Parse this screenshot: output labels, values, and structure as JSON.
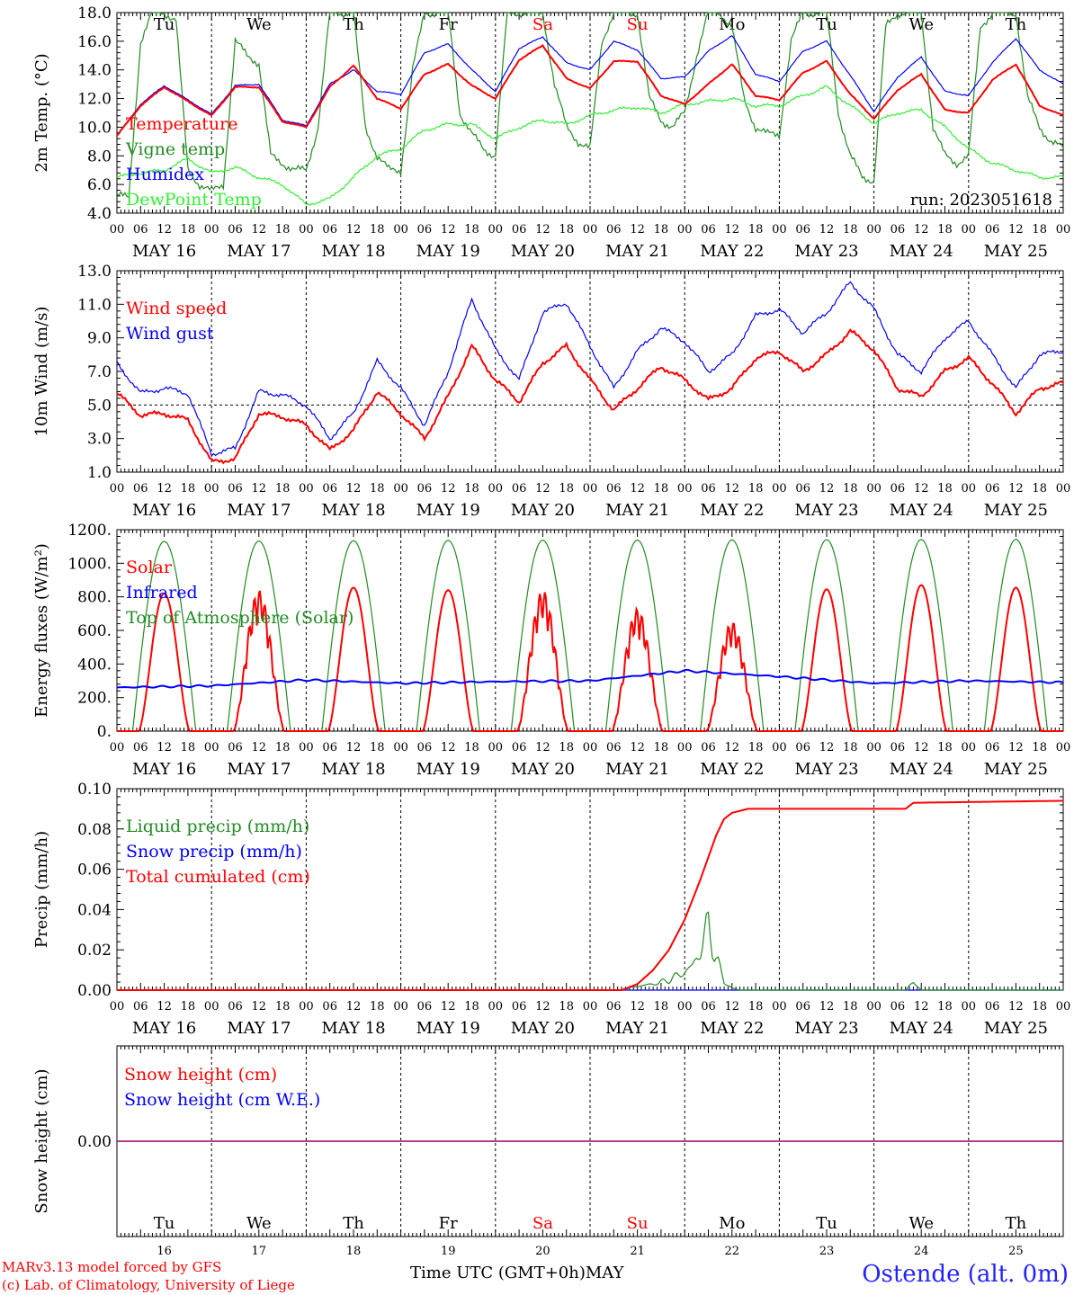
{
  "time_axis": {
    "hour_ticks": [
      "00",
      "06",
      "12",
      "18"
    ],
    "final_tick": "00",
    "dates": [
      "MAY 16",
      "MAY 17",
      "MAY 18",
      "MAY 19",
      "MAY 20",
      "MAY 21",
      "MAY 22",
      "MAY 23",
      "MAY 24",
      "MAY 25"
    ],
    "weekdays": [
      "Tu",
      "We",
      "Th",
      "Fr",
      "Sa",
      "Su",
      "Mo",
      "Tu",
      "We",
      "Th"
    ],
    "day_numbers": [
      "16",
      "17",
      "18",
      "19",
      "20",
      "21",
      "22",
      "23",
      "24",
      "25"
    ],
    "weekday_colors": [
      "#000000",
      "#000000",
      "#000000",
      "#000000",
      "#ff0000",
      "#ff0000",
      "#000000",
      "#000000",
      "#000000",
      "#000000"
    ],
    "xlabel": "Time UTC (GMT+0h)",
    "month_label": "MAY"
  },
  "run_label": "run: 2023051618",
  "footer": {
    "model": "MARv3.13 model forced by GFS",
    "lab": "(c) Lab. of Climatology, University of Liege",
    "station": "Ostende (alt. 0m)"
  },
  "chart_data": [
    {
      "type": "line",
      "ylabel": "2m Temp. (°C)",
      "ylim": [
        4,
        18
      ],
      "ytick_labels": [
        "4.0",
        "6.0",
        "8.0",
        "10.0",
        "12.0",
        "14.0",
        "16.0",
        "18.0"
      ],
      "x_unit": "hours since May 16 00 UTC",
      "series": [
        {
          "name": "Temperature",
          "color": "#ff0000",
          "x": [
            0,
            6,
            12,
            18,
            24,
            30,
            36,
            42,
            48,
            54,
            60,
            66,
            72,
            78,
            84,
            90,
            96,
            102,
            108,
            114,
            120,
            126,
            132,
            138,
            144,
            150,
            156,
            162,
            168,
            174,
            180,
            186,
            192,
            198,
            204,
            210,
            216,
            222,
            228,
            234,
            240
          ],
          "values": [
            9.4,
            11.5,
            12.8,
            11.8,
            10.8,
            12.8,
            12.8,
            10.4,
            10.0,
            12.8,
            14.3,
            12.0,
            11.3,
            13.7,
            14.4,
            12.9,
            12.0,
            14.7,
            15.7,
            13.4,
            12.7,
            14.6,
            14.6,
            12.2,
            11.6,
            13.0,
            14.4,
            12.2,
            11.9,
            13.8,
            14.6,
            12.3,
            10.6,
            12.6,
            13.7,
            11.2,
            11.0,
            13.3,
            14.4,
            11.5,
            10.8
          ]
        },
        {
          "name": "Vigne temp",
          "color": "#228b22",
          "x": [
            0,
            3,
            6,
            9,
            12,
            15,
            18,
            21,
            24,
            27,
            30,
            33,
            36,
            39,
            42,
            45,
            48,
            51,
            54,
            57,
            60,
            63,
            66,
            69,
            72,
            75,
            78,
            81,
            84,
            87,
            90,
            93,
            96,
            99,
            102,
            105,
            108,
            111,
            114,
            117,
            120,
            123,
            126,
            129,
            132,
            135,
            138,
            141,
            144,
            147,
            150,
            153,
            156,
            159,
            162,
            165,
            168,
            171,
            174,
            177,
            180,
            183,
            186,
            189,
            192,
            195,
            198,
            201,
            204,
            207,
            210,
            213,
            216,
            219,
            222,
            225,
            228,
            231,
            234,
            237,
            240
          ],
          "values": [
            5.3,
            5.0,
            16.0,
            18.0,
            18.0,
            17.5,
            7.0,
            6.0,
            5.5,
            6.0,
            16.0,
            15.0,
            14.5,
            8.0,
            7.5,
            7.0,
            7.0,
            10.0,
            18.0,
            18.0,
            18.0,
            10.0,
            8.0,
            7.0,
            7.0,
            14.0,
            18.0,
            18.0,
            18.0,
            11.0,
            9.5,
            8.5,
            8.0,
            18.0,
            18.0,
            18.0,
            18.0,
            13.0,
            10.0,
            9.0,
            8.5,
            16.0,
            18.0,
            18.0,
            18.0,
            12.0,
            10.5,
            10.0,
            11.0,
            15.0,
            18.0,
            18.0,
            17.0,
            12.0,
            10.0,
            9.5,
            9.5,
            16.0,
            18.0,
            18.0,
            18.0,
            11.0,
            8.0,
            6.5,
            6.3,
            17.0,
            18.0,
            18.0,
            18.0,
            10.0,
            8.0,
            7.5,
            8.0,
            17.0,
            18.0,
            18.0,
            18.0,
            12.0,
            10.0,
            9.0,
            8.5
          ]
        },
        {
          "name": "Humidex",
          "color": "#0000ff",
          "x": [
            0,
            6,
            12,
            18,
            24,
            30,
            36,
            42,
            48,
            54,
            60,
            66,
            72,
            78,
            84,
            90,
            96,
            102,
            108,
            114,
            120,
            126,
            132,
            138,
            144,
            150,
            156,
            162,
            168,
            174,
            180,
            186,
            192,
            198,
            204,
            210,
            216,
            222,
            228,
            234,
            240
          ],
          "values": [
            9.4,
            11.6,
            12.9,
            11.9,
            10.9,
            12.9,
            13.0,
            10.5,
            10.1,
            13.0,
            14.0,
            12.5,
            12.3,
            15.2,
            15.8,
            14.0,
            12.5,
            15.5,
            16.3,
            14.5,
            14.0,
            16.0,
            15.4,
            13.4,
            13.5,
            15.3,
            16.4,
            13.7,
            13.2,
            15.3,
            16.0,
            13.6,
            11.1,
            13.5,
            14.9,
            12.5,
            12.2,
            14.5,
            16.2,
            14.0,
            13.0
          ]
        },
        {
          "name": "DewPoint Temp",
          "color": "#33ee33",
          "x": [
            0,
            6,
            12,
            18,
            24,
            30,
            36,
            42,
            48,
            54,
            60,
            66,
            72,
            78,
            84,
            90,
            96,
            102,
            108,
            114,
            120,
            126,
            132,
            138,
            144,
            150,
            156,
            162,
            168,
            174,
            180,
            186,
            192,
            198,
            204,
            210,
            216,
            222,
            228,
            234,
            240
          ],
          "values": [
            6.5,
            6.8,
            7.0,
            7.8,
            6.8,
            7.2,
            6.5,
            6.0,
            4.6,
            5.0,
            6.5,
            8.0,
            8.5,
            9.8,
            10.2,
            10.2,
            9.2,
            10.0,
            10.5,
            10.2,
            10.8,
            11.2,
            11.4,
            11.0,
            11.6,
            11.8,
            12.0,
            11.5,
            11.5,
            12.2,
            12.8,
            11.5,
            10.3,
            11.0,
            11.2,
            10.0,
            8.5,
            7.5,
            7.0,
            6.5,
            6.5
          ]
        }
      ]
    },
    {
      "type": "line",
      "ylabel": "10m Wind (m/s)",
      "ylim": [
        1,
        13
      ],
      "ytick_labels": [
        "1.0",
        "3.0",
        "5.0",
        "7.0",
        "9.0",
        "11.0",
        "13.0"
      ],
      "reference_line": 5,
      "series": [
        {
          "name": "Wind speed",
          "color": "#ff0000",
          "x": [
            0,
            6,
            12,
            18,
            24,
            30,
            36,
            42,
            48,
            54,
            60,
            66,
            72,
            78,
            84,
            90,
            96,
            102,
            108,
            114,
            120,
            126,
            132,
            138,
            144,
            150,
            156,
            162,
            168,
            174,
            180,
            186,
            192,
            198,
            204,
            210,
            216,
            222,
            228,
            234,
            240
          ],
          "values": [
            5.7,
            4.4,
            4.5,
            4.1,
            1.6,
            1.8,
            4.5,
            4.3,
            3.8,
            2.3,
            3.5,
            5.8,
            4.5,
            3.0,
            5.5,
            8.5,
            6.5,
            5.2,
            7.5,
            8.5,
            6.5,
            4.7,
            6.0,
            7.3,
            6.5,
            5.3,
            6.0,
            7.8,
            8.2,
            7.0,
            8.0,
            9.4,
            8.3,
            6.0,
            5.5,
            7.0,
            7.8,
            6.3,
            4.5,
            6.0,
            6.3
          ]
        },
        {
          "name": "Wind gust",
          "color": "#0000ff",
          "x": [
            0,
            6,
            12,
            18,
            24,
            30,
            36,
            42,
            48,
            54,
            60,
            66,
            72,
            78,
            84,
            90,
            96,
            102,
            108,
            114,
            120,
            126,
            132,
            138,
            144,
            150,
            156,
            162,
            168,
            174,
            180,
            186,
            192,
            198,
            204,
            210,
            216,
            222,
            228,
            234,
            240
          ],
          "values": [
            7.5,
            5.7,
            6.0,
            5.7,
            2.1,
            2.4,
            5.8,
            5.6,
            5.0,
            3.0,
            4.5,
            7.6,
            6.0,
            3.8,
            7.0,
            11.3,
            8.3,
            6.5,
            10.5,
            11.1,
            8.5,
            6.0,
            8.2,
            9.6,
            8.8,
            7.0,
            8.0,
            10.3,
            10.7,
            9.3,
            10.5,
            12.3,
            10.7,
            8.0,
            7.0,
            9.0,
            10.0,
            8.0,
            6.0,
            8.0,
            8.2
          ]
        }
      ]
    },
    {
      "type": "line",
      "ylabel": "Energy fluxes (W/m²)",
      "ylim": [
        0,
        1200
      ],
      "ytick_labels": [
        "0.",
        "200.",
        "400.",
        "600.",
        "800.",
        "1000.",
        "1200."
      ],
      "series": [
        {
          "name": "Solar",
          "color": "#ff0000",
          "daily_peaks": [
            820,
            840,
            855,
            840,
            840,
            730,
            650,
            845,
            870,
            855
          ]
        },
        {
          "name": "Infrared",
          "color": "#0000ff",
          "x": [
            0,
            24,
            48,
            72,
            96,
            120,
            144,
            168,
            192,
            216,
            240
          ],
          "values": [
            260,
            270,
            305,
            285,
            295,
            300,
            360,
            325,
            285,
            300,
            290
          ]
        },
        {
          "name": "Top of Atmosphere (Solar)",
          "color": "#228b22",
          "daily_peaks": [
            1130,
            1132,
            1134,
            1136,
            1137,
            1138,
            1139,
            1140,
            1141,
            1142
          ]
        }
      ]
    },
    {
      "type": "line",
      "ylabel": "Precip (mm/h)",
      "ylim": [
        0,
        0.1
      ],
      "ytick_labels": [
        "0.00",
        "0.02",
        "0.04",
        "0.06",
        "0.08",
        "0.10"
      ],
      "series": [
        {
          "name": "Liquid precip (mm/h)",
          "color": "#228b22",
          "x": [
            0,
            128,
            132,
            136,
            140,
            144,
            146,
            148,
            150,
            152,
            154,
            156,
            158,
            162,
            200,
            202,
            204,
            240
          ],
          "values": [
            0,
            0,
            0.002,
            0.003,
            0.005,
            0.009,
            0.012,
            0.02,
            0.032,
            0.016,
            0.004,
            0.001,
            0,
            0,
            0,
            0.004,
            0,
            0
          ]
        },
        {
          "name": "Snow precip (mm/h)",
          "color": "#0000ff",
          "x": [
            0,
            240
          ],
          "values": [
            0,
            0
          ]
        },
        {
          "name": "Total cumulated (cm)",
          "color": "#ff0000",
          "x": [
            0,
            128,
            132,
            136,
            140,
            144,
            148,
            152,
            154,
            156,
            160,
            168,
            200,
            202,
            240
          ],
          "values": [
            0,
            0,
            0.003,
            0.01,
            0.02,
            0.035,
            0.055,
            0.077,
            0.085,
            0.088,
            0.09,
            0.09,
            0.09,
            0.093,
            0.094
          ]
        }
      ]
    },
    {
      "type": "line",
      "ylabel": "Snow height (cm)",
      "ytick_labels": [
        "0.00"
      ],
      "series": [
        {
          "name": "Snow height (cm)",
          "color": "#ff0000",
          "x": [
            0,
            240
          ],
          "values": [
            0,
            0
          ]
        },
        {
          "name": "Snow height (cm W.E.)",
          "color": "#0000ff",
          "x": [
            0,
            240
          ],
          "values": [
            0,
            0
          ]
        }
      ]
    }
  ]
}
